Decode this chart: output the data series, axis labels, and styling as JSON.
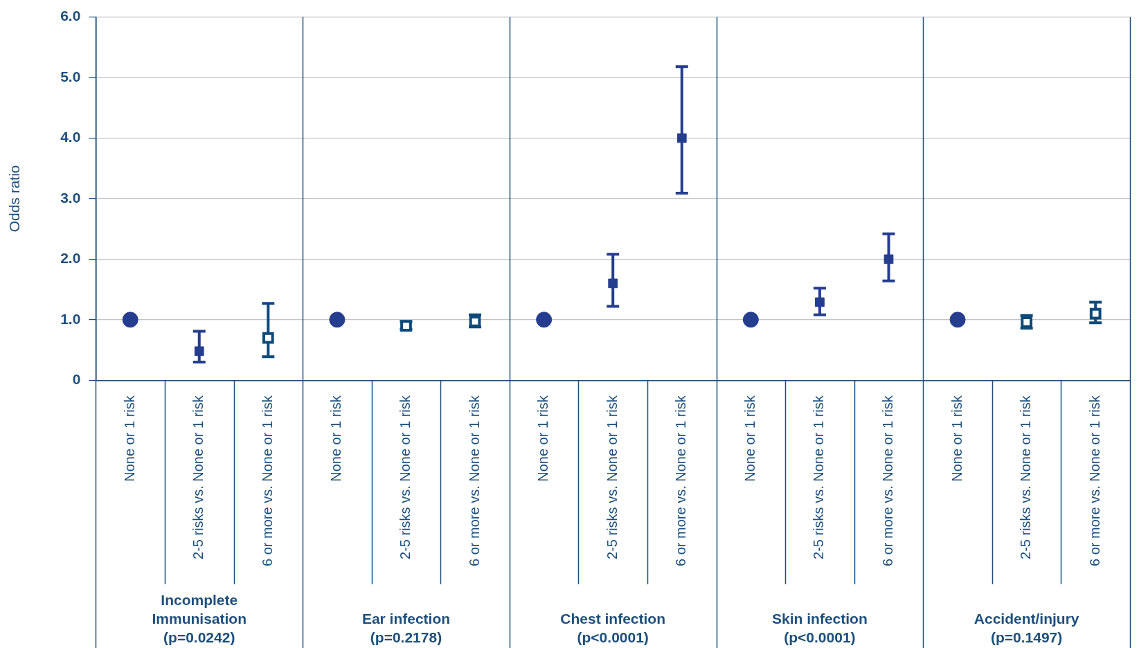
{
  "chart_data": {
    "type": "scatter",
    "ylabel": "Odds ratio",
    "categories": [
      "None or 1 risk",
      "2-5 risks vs. None or 1 risk",
      "6 or more vs. None or 1 risk",
      "None or 1 risk",
      "2-5 risks vs. None or 1 risk",
      "6 or more vs. None or 1 risk",
      "None or 1 risk",
      "2-5 risks vs. None or 1 risk",
      "6 or more vs. None or 1 risk",
      "None or 1 risk",
      "2-5 risks vs. None or 1 risk",
      "6 or more vs. None or 1 risk",
      "None or 1 risk",
      "2-5 risks vs. None or 1 risk",
      "6 or more vs. None or 1 risk"
    ],
    "series": [
      {
        "color": "#253d8f",
        "marker": "circle",
        "values": [
          1.0,
          null,
          null,
          1.0,
          null,
          null,
          1.0,
          null,
          null,
          1.0,
          null,
          null,
          1.0,
          null,
          null
        ]
      },
      {
        "color": "#253d8f",
        "marker": "square",
        "values": [
          null,
          0.48,
          null,
          null,
          null,
          null,
          null,
          1.6,
          4.0,
          null,
          1.29,
          2.0,
          null,
          null,
          null
        ],
        "errors": [
          null,
          [
            0.3,
            0.81
          ],
          null,
          null,
          null,
          null,
          null,
          [
            1.22,
            2.08
          ],
          [
            3.09,
            5.18
          ],
          null,
          [
            1.08,
            1.52
          ],
          [
            1.64,
            2.42
          ],
          null,
          null,
          null
        ]
      },
      {
        "color": "#0d4a7a",
        "marker": "square",
        "values": [
          null,
          null,
          0.7,
          null,
          0.9,
          0.97,
          null,
          null,
          null,
          null,
          null,
          null,
          null,
          0.96,
          1.1
        ],
        "errors": [
          null,
          null,
          [
            0.39,
            1.27
          ],
          null,
          [
            0.84,
            0.97
          ],
          [
            0.88,
            1.08
          ],
          null,
          null,
          null,
          null,
          null,
          null,
          null,
          [
            0.86,
            1.07
          ],
          [
            0.95,
            1.29
          ]
        ]
      }
    ],
    "ylim": [
      0,
      6
    ],
    "yticks": [
      {
        "value": 0,
        "label": "0"
      },
      {
        "value": 1,
        "label": "1.0"
      },
      {
        "value": 2,
        "label": "2.0"
      },
      {
        "value": 3,
        "label": "3.0"
      },
      {
        "value": 4,
        "label": "4.0"
      },
      {
        "value": 5,
        "label": "5.0"
      },
      {
        "value": 6,
        "label": "6.0"
      }
    ],
    "grid": "y",
    "annotations": [
      "Incomplete Immunisation (p=0.0242)",
      "Ear infection (p=0.2178)",
      "Chest infection (p<0.0001)",
      "Skin infection (p<0.0001)",
      "Accident/injury (p=0.1497)"
    ]
  }
}
